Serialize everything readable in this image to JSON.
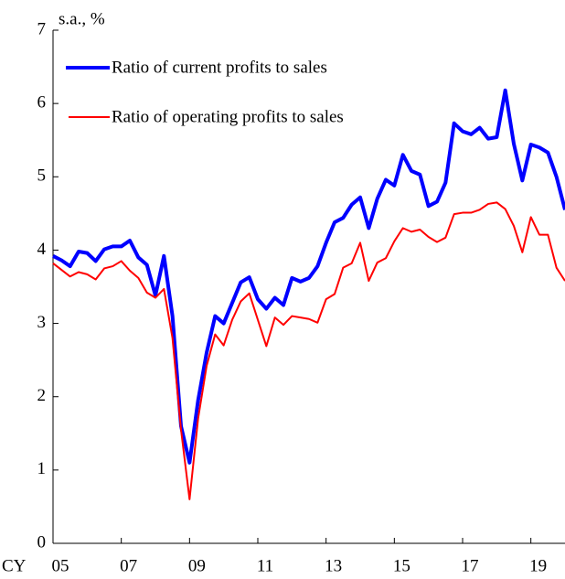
{
  "chart_data": {
    "type": "line",
    "ylabel": "s.a., %",
    "xlabel": "CY",
    "categories": [
      "05",
      null,
      null,
      null,
      null,
      null,
      null,
      null,
      "07",
      null,
      null,
      null,
      null,
      null,
      null,
      null,
      "09",
      null,
      null,
      null,
      null,
      null,
      null,
      null,
      "11",
      null,
      null,
      null,
      null,
      null,
      null,
      null,
      "13",
      null,
      null,
      null,
      null,
      null,
      null,
      null,
      "15",
      null,
      null,
      null,
      null,
      null,
      null,
      null,
      "17",
      null,
      null,
      null,
      null,
      null,
      null,
      null,
      "19",
      null,
      null,
      null,
      null
    ],
    "series": [
      {
        "name": "Ratio of current profits to sales",
        "color": "#0000ff",
        "width": 4,
        "values": [
          3.92,
          3.86,
          3.78,
          3.98,
          3.96,
          3.85,
          4.01,
          4.05,
          4.05,
          4.13,
          3.9,
          3.8,
          3.38,
          3.92,
          3.1,
          1.6,
          1.1,
          1.95,
          2.6,
          3.1,
          3.0,
          3.28,
          3.56,
          3.63,
          3.33,
          3.2,
          3.35,
          3.25,
          3.62,
          3.57,
          3.62,
          3.78,
          4.1,
          4.38,
          4.44,
          4.62,
          4.72,
          4.3,
          4.7,
          4.96,
          4.88,
          5.3,
          5.08,
          5.03,
          4.6,
          4.66,
          4.92,
          5.73,
          5.62,
          5.58,
          5.67,
          5.52,
          5.54,
          6.18,
          5.45,
          4.95,
          5.44,
          5.4,
          5.33,
          5.0,
          4.55
        ]
      },
      {
        "name": "Ratio of operating profits to sales",
        "color": "#ff0000",
        "width": 2,
        "values": [
          3.82,
          3.73,
          3.64,
          3.7,
          3.67,
          3.6,
          3.75,
          3.78,
          3.85,
          3.72,
          3.62,
          3.42,
          3.35,
          3.47,
          2.8,
          1.55,
          0.6,
          1.7,
          2.42,
          2.85,
          2.7,
          3.05,
          3.3,
          3.41,
          3.05,
          2.69,
          3.08,
          2.98,
          3.1,
          3.08,
          3.06,
          3.01,
          3.33,
          3.4,
          3.76,
          3.82,
          4.1,
          3.58,
          3.83,
          3.89,
          4.12,
          4.3,
          4.25,
          4.28,
          4.18,
          4.11,
          4.17,
          4.49,
          4.51,
          4.51,
          4.55,
          4.63,
          4.65,
          4.56,
          4.33,
          3.97,
          4.45,
          4.21,
          4.21,
          3.76,
          3.58
        ]
      }
    ],
    "ylim": [
      0,
      7
    ],
    "yticks": [
      0,
      1,
      2,
      3,
      4,
      5,
      6,
      7
    ],
    "grid": false
  }
}
